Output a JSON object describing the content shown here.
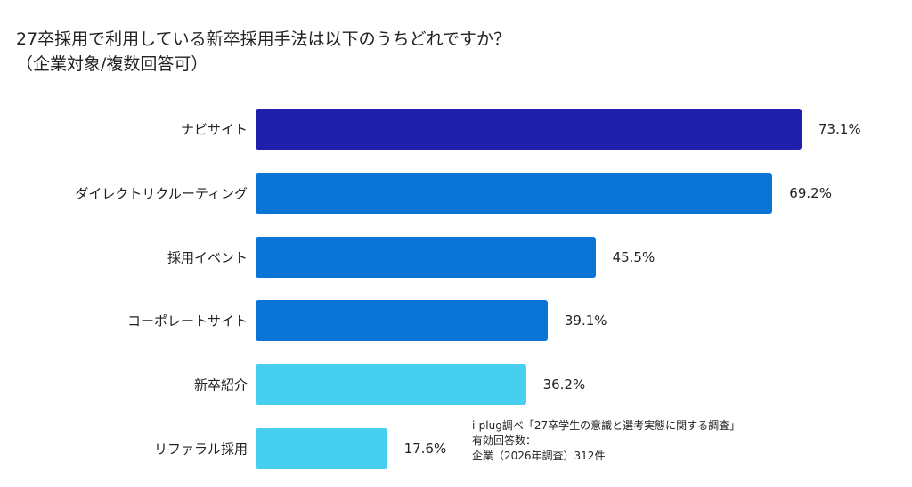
{
  "chart_data": {
    "type": "bar",
    "orientation": "horizontal",
    "title": "27卒採用で利用している新卒採用手法は以下のうちどれですか？",
    "subtitle": "（企業対象/複数回答可）",
    "categories": [
      "ナビサイト",
      "ダイレクトリクルーティング",
      "採用イベント",
      "コーポレートサイト",
      "新卒紹介",
      "リファラル採用"
    ],
    "values": [
      73.1,
      69.2,
      45.5,
      39.1,
      36.2,
      17.6
    ],
    "value_labels": [
      "73.1%",
      "69.2%",
      "45.5%",
      "39.1%",
      "36.2%",
      "17.6%"
    ],
    "colors": [
      "#1f1fab",
      "#0a75d6",
      "#0a75d6",
      "#0a75d6",
      "#46cfee",
      "#46cfee"
    ],
    "xlim": [
      0,
      100
    ],
    "grid": false,
    "legend": "none"
  },
  "source": {
    "line1": "i-plug調べ「27卒学生の意識と選考実態に関する調査」",
    "line2": "有効回答数：",
    "line3": "企業（2026年調査）312件"
  }
}
